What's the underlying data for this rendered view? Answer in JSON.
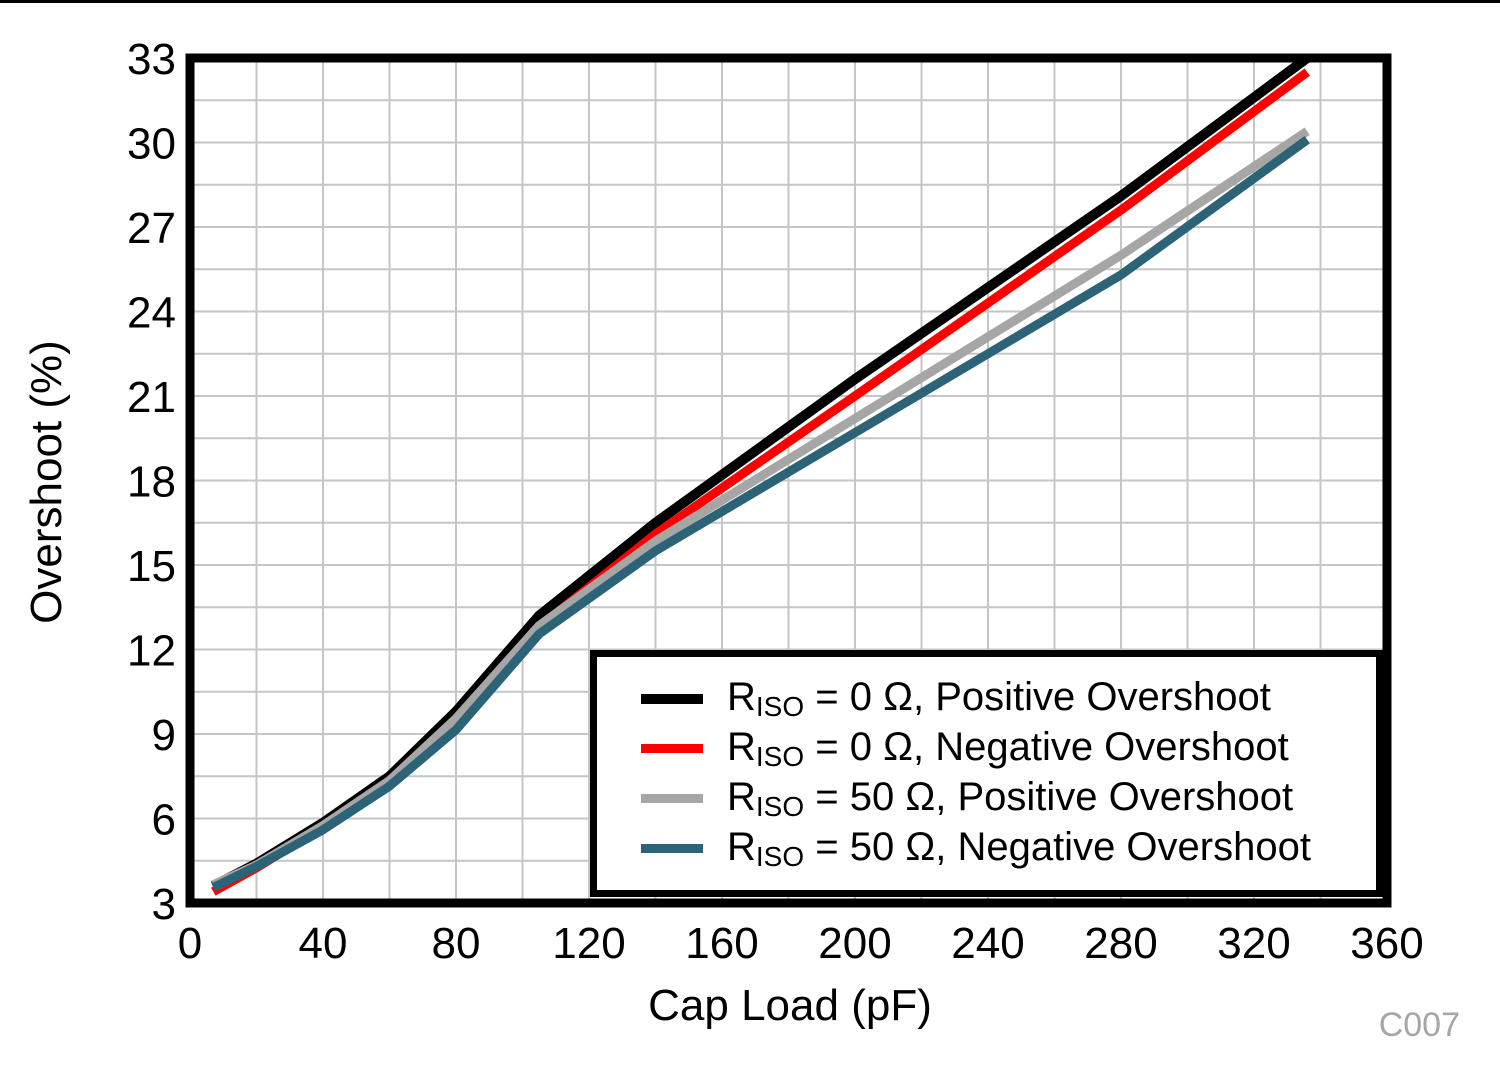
{
  "page": {
    "top_border_color": "#000000",
    "background": "#FFFFFF"
  },
  "chart_data": {
    "type": "line",
    "title": "",
    "xlabel": "Cap Load (pF)",
    "ylabel": "Overshoot (%)",
    "xlim": [
      0,
      360
    ],
    "ylim": [
      3,
      33
    ],
    "x_ticks": [
      0,
      40,
      80,
      120,
      160,
      200,
      240,
      280,
      320,
      360
    ],
    "y_ticks": [
      3,
      6,
      9,
      12,
      15,
      18,
      21,
      24,
      27,
      30,
      33
    ],
    "x_minor_step": 20,
    "y_minor_step": 1.5,
    "grid": true,
    "grid_color": "#C6C6C6",
    "axis_color": "#000000",
    "legend_position": "inside-bottom-right",
    "x": [
      7,
      20,
      40,
      60,
      80,
      105,
      140,
      200,
      280,
      336
    ],
    "series": [
      {
        "name": "RISO = 0 Ohm, Positive Overshoot",
        "label_prefix": "R",
        "label_sub": "ISO",
        "label_rest": " = 0 Ω, Positive Overshoot",
        "color": "#000000",
        "stroke_width": 10,
        "values": [
          3.6,
          4.4,
          5.85,
          7.5,
          9.8,
          13.2,
          16.5,
          21.6,
          28.1,
          33.0
        ]
      },
      {
        "name": "RISO = 0 Ohm, Negative Overshoot",
        "label_prefix": "R",
        "label_sub": "ISO",
        "label_rest": " = 0 Ω, Negative Overshoot",
        "color": "#FF0000",
        "stroke_width": 9,
        "values": [
          3.4,
          4.25,
          5.7,
          7.3,
          9.4,
          12.8,
          16.1,
          21.0,
          27.6,
          32.5
        ]
      },
      {
        "name": "RISO = 50 Ohm, Positive Overshoot",
        "label_prefix": "R",
        "label_sub": "ISO",
        "label_rest": " = 50 Ω, Positive Overshoot",
        "color": "#A6A6A6",
        "stroke_width": 9,
        "values": [
          3.65,
          4.35,
          5.75,
          7.35,
          9.55,
          12.85,
          15.85,
          20.2,
          26.0,
          30.4
        ]
      },
      {
        "name": "RISO = 50 Ohm, Negative Overshoot",
        "label_prefix": "R",
        "label_sub": "ISO",
        "label_rest": " = 50 Ω, Negative Overshoot",
        "color": "#2D6377",
        "stroke_width": 9,
        "values": [
          3.55,
          4.3,
          5.6,
          7.15,
          9.15,
          12.55,
          15.5,
          19.7,
          25.3,
          30.1
        ]
      }
    ]
  },
  "annotations": {
    "code": "C007",
    "code_color": "#A6A6A6"
  }
}
